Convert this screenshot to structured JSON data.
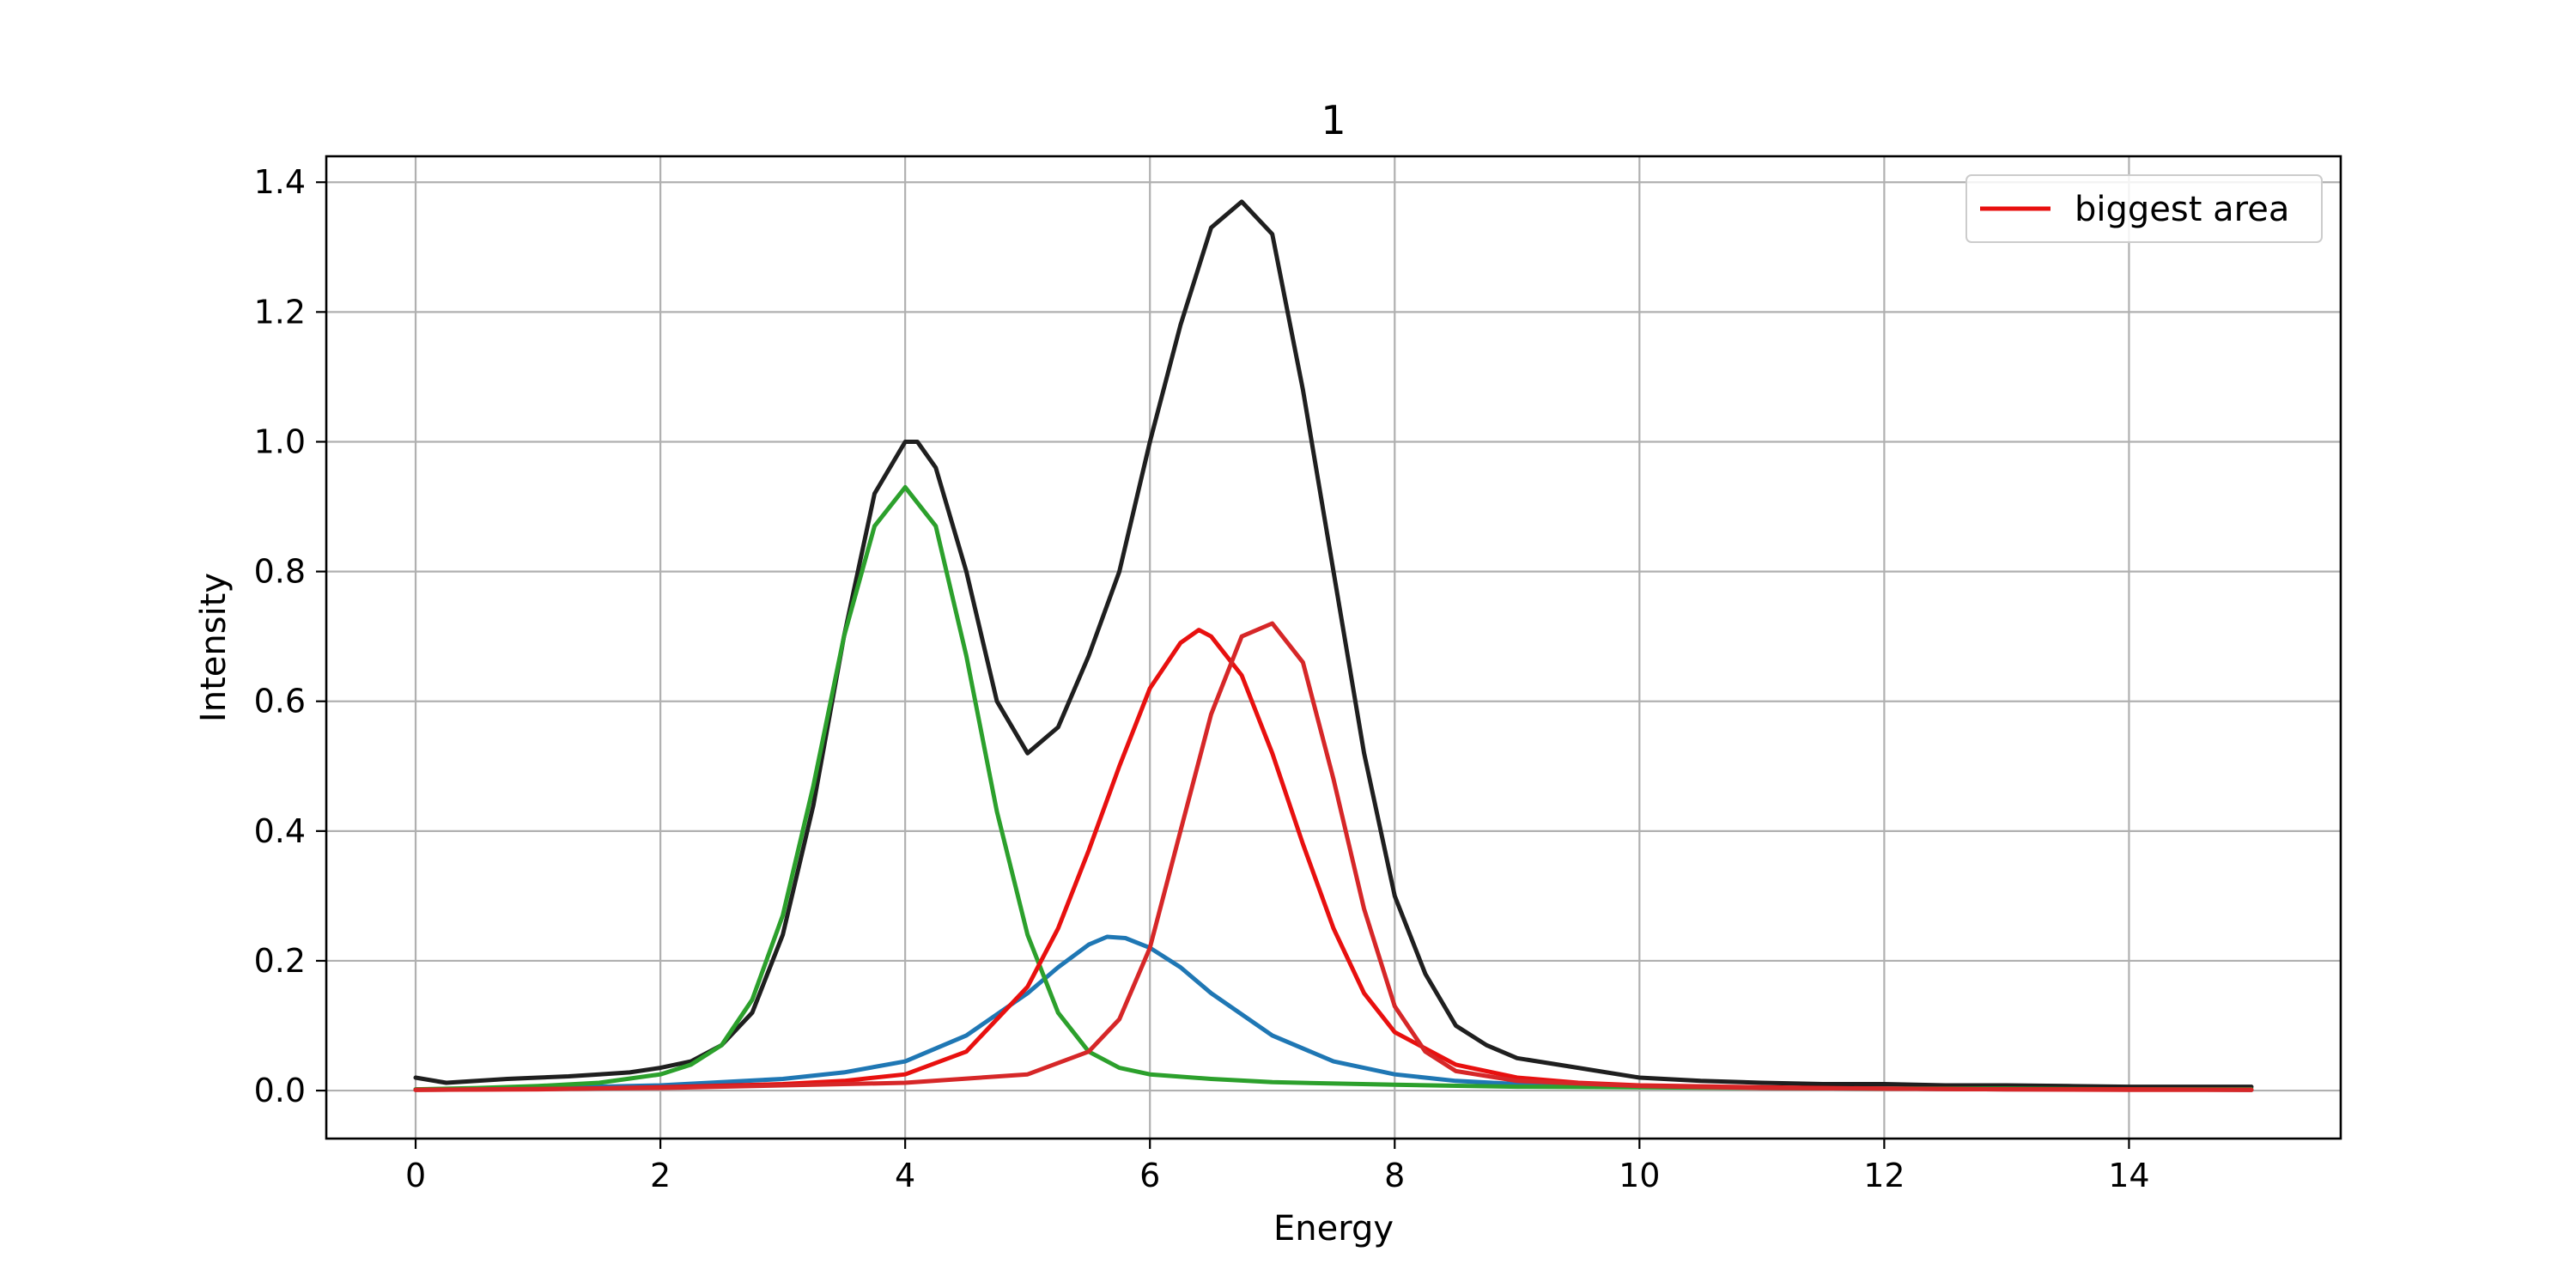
{
  "chart_data": {
    "type": "line",
    "title": "1",
    "xlabel": "Energy",
    "ylabel": "Intensity",
    "xlim": [
      -0.73,
      15.73
    ],
    "ylim": [
      -0.074,
      1.44
    ],
    "x_ticks": [
      0,
      2,
      4,
      6,
      8,
      10,
      12,
      14
    ],
    "y_ticks": [
      0.0,
      0.2,
      0.4,
      0.6,
      0.8,
      1.0,
      1.2,
      1.4
    ],
    "x_tick_labels": [
      "0",
      "2",
      "4",
      "6",
      "8",
      "10",
      "12",
      "14"
    ],
    "y_tick_labels": [
      "0.0",
      "0.2",
      "0.4",
      "0.6",
      "0.8",
      "1.0",
      "1.2",
      "1.4"
    ],
    "grid": true,
    "legend": {
      "position": "top-right",
      "entries": [
        {
          "label": "biggest area",
          "color": "#e8100f"
        }
      ]
    },
    "x_range": [
      0,
      15
    ],
    "series": [
      {
        "color": "#1f1f1f",
        "role": "measured",
        "x": [
          0,
          0.25,
          0.5,
          0.75,
          1.0,
          1.25,
          1.5,
          1.75,
          2.0,
          2.25,
          2.5,
          2.75,
          3.0,
          3.25,
          3.5,
          3.75,
          4.0,
          4.1,
          4.25,
          4.5,
          4.75,
          5.0,
          5.25,
          5.5,
          5.75,
          6.0,
          6.25,
          6.5,
          6.75,
          7.0,
          7.25,
          7.5,
          7.75,
          8.0,
          8.25,
          8.5,
          8.75,
          9.0,
          9.5,
          10.0,
          10.5,
          11.0,
          11.5,
          12.0,
          12.5,
          13.0,
          13.5,
          14.0,
          14.5,
          15.0
        ],
        "y": [
          0.02,
          0.012,
          0.015,
          0.018,
          0.02,
          0.022,
          0.025,
          0.028,
          0.035,
          0.045,
          0.07,
          0.12,
          0.24,
          0.44,
          0.7,
          0.92,
          1.0,
          1.0,
          0.96,
          0.8,
          0.6,
          0.52,
          0.56,
          0.67,
          0.8,
          1.0,
          1.18,
          1.33,
          1.37,
          1.32,
          1.08,
          0.8,
          0.52,
          0.3,
          0.18,
          0.1,
          0.07,
          0.05,
          0.035,
          0.02,
          0.015,
          0.012,
          0.01,
          0.01,
          0.008,
          0.008,
          0.007,
          0.006,
          0.006,
          0.006
        ]
      },
      {
        "color": "#2ca02c",
        "role": "component",
        "x": [
          0,
          0.5,
          1.0,
          1.5,
          2.0,
          2.25,
          2.5,
          2.75,
          3.0,
          3.25,
          3.5,
          3.75,
          4.0,
          4.25,
          4.5,
          4.75,
          5.0,
          5.25,
          5.5,
          5.75,
          6.0,
          6.5,
          7.0,
          8.0,
          9.0,
          10.0,
          11.0,
          12.0,
          13.0,
          14.0,
          15.0
        ],
        "y": [
          0.002,
          0.004,
          0.007,
          0.012,
          0.025,
          0.04,
          0.07,
          0.14,
          0.27,
          0.47,
          0.7,
          0.87,
          0.93,
          0.87,
          0.67,
          0.43,
          0.24,
          0.12,
          0.06,
          0.035,
          0.025,
          0.018,
          0.013,
          0.009,
          0.006,
          0.005,
          0.004,
          0.003,
          0.003,
          0.002,
          0.002
        ]
      },
      {
        "color": "#1f77b4",
        "role": "component",
        "x": [
          0,
          1.0,
          2.0,
          3.0,
          3.5,
          4.0,
          4.5,
          5.0,
          5.25,
          5.5,
          5.65,
          5.8,
          6.0,
          6.25,
          6.5,
          7.0,
          7.5,
          8.0,
          8.5,
          9.0,
          10.0,
          11.0,
          12.0,
          13.0,
          14.0,
          15.0
        ],
        "y": [
          0.002,
          0.004,
          0.008,
          0.018,
          0.028,
          0.045,
          0.085,
          0.15,
          0.19,
          0.225,
          0.237,
          0.235,
          0.22,
          0.19,
          0.15,
          0.085,
          0.045,
          0.025,
          0.015,
          0.01,
          0.006,
          0.004,
          0.003,
          0.002,
          0.002,
          0.001
        ]
      },
      {
        "color": "#e8100f",
        "role": "biggest area",
        "x": [
          0,
          1.0,
          2.0,
          3.0,
          3.5,
          4.0,
          4.5,
          5.0,
          5.25,
          5.5,
          5.75,
          6.0,
          6.25,
          6.4,
          6.5,
          6.75,
          7.0,
          7.25,
          7.5,
          7.75,
          8.0,
          8.5,
          9.0,
          9.5,
          10.0,
          11.0,
          12.0,
          13.0,
          14.0,
          15.0
        ],
        "y": [
          0.001,
          0.002,
          0.005,
          0.01,
          0.015,
          0.025,
          0.06,
          0.16,
          0.25,
          0.37,
          0.5,
          0.62,
          0.69,
          0.71,
          0.7,
          0.64,
          0.52,
          0.38,
          0.25,
          0.15,
          0.09,
          0.04,
          0.02,
          0.012,
          0.008,
          0.005,
          0.003,
          0.002,
          0.002,
          0.001
        ]
      },
      {
        "color": "#d62728",
        "role": "component",
        "x": [
          0,
          2.0,
          4.0,
          5.0,
          5.5,
          5.75,
          6.0,
          6.25,
          6.5,
          6.75,
          7.0,
          7.25,
          7.5,
          7.75,
          8.0,
          8.25,
          8.5,
          9.0,
          10.0,
          11.0,
          12.0,
          13.0,
          14.0,
          15.0
        ],
        "y": [
          0.001,
          0.004,
          0.012,
          0.025,
          0.06,
          0.11,
          0.22,
          0.4,
          0.58,
          0.7,
          0.72,
          0.66,
          0.48,
          0.28,
          0.13,
          0.06,
          0.03,
          0.015,
          0.007,
          0.004,
          0.003,
          0.002,
          0.001,
          0.001
        ]
      }
    ]
  }
}
